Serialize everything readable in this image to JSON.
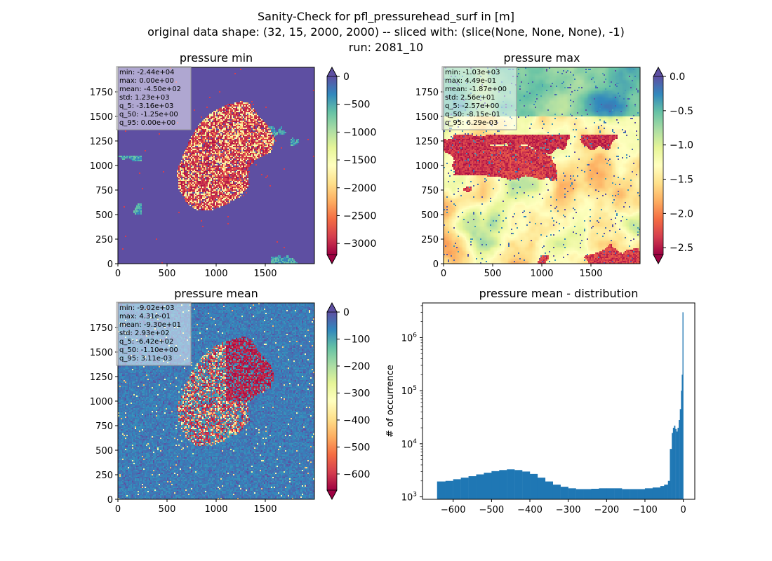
{
  "figure": {
    "title_line1": "Sanity-Check for pfl_pressurehead_surf in [m]",
    "title_line2": "original data shape: (32, 15, 2000, 2000) -- sliced with: (slice(None, None, None), -1)",
    "title_line3": "run: 2081_10"
  },
  "colors": {
    "spectral_stops": [
      "#9e0142",
      "#d53e4f",
      "#f46d43",
      "#fdae61",
      "#fee08b",
      "#ffffbf",
      "#e6f598",
      "#abdda4",
      "#66c2a5",
      "#3288bd",
      "#5e4fa2"
    ],
    "ylorrd_stops": [
      "#800026",
      "#bd0026",
      "#e31a1c",
      "#fc4e2a",
      "#fd8d3c",
      "#feb24c",
      "#fed976",
      "#ffeda0",
      "#ffffcc"
    ],
    "histogram_bar": "#1f77b4"
  },
  "chart_data": [
    {
      "type": "heatmap",
      "title": "pressure min",
      "x_ticks": [
        "0",
        "500",
        "1000",
        "1500"
      ],
      "y_ticks": [
        "0",
        "250",
        "500",
        "750",
        "1000",
        "1250",
        "1500",
        "1750"
      ],
      "xlim": [
        0,
        2000
      ],
      "ylim": [
        0,
        2000
      ],
      "colormap": "Spectral",
      "colorbar": {
        "range": [
          -3200,
          0
        ],
        "extend": "both",
        "ticks": [
          "0",
          "−500",
          "−1000",
          "−1500",
          "−2000",
          "−2500",
          "−3000"
        ],
        "tick_values": [
          0,
          -500,
          -1000,
          -1500,
          -2000,
          -2500,
          -3000
        ]
      },
      "stats": [
        "min: -2.44e+04",
        "max: 0.00e+00",
        "mean: -4.50e+02",
        "std: 1.23e+03",
        "q_5: -3.16e+03",
        "q_50: -1.25e+00",
        "q_95: 0.00e+00"
      ]
    },
    {
      "type": "heatmap",
      "title": "pressure max",
      "x_ticks": [
        "0",
        "500",
        "1000",
        "1500"
      ],
      "y_ticks": [
        "0",
        "250",
        "500",
        "750",
        "1000",
        "1250",
        "1500",
        "1750"
      ],
      "xlim": [
        0,
        2000
      ],
      "ylim": [
        0,
        2000
      ],
      "colormap": "Spectral",
      "colorbar": {
        "range": [
          -2.6,
          0
        ],
        "extend": "both",
        "ticks": [
          "0.0",
          "−0.5",
          "−1.0",
          "−1.5",
          "−2.0",
          "−2.5"
        ],
        "tick_values": [
          0,
          -0.5,
          -1,
          -1.5,
          -2,
          -2.5
        ]
      },
      "stats": [
        "min: -1.03e+03",
        "max: 4.49e-01",
        "mean: -1.87e+00",
        "std: 2.56e+01",
        "q_5: -2.57e+00",
        "q_50: -8.15e-01",
        "q_95: 6.29e-03"
      ]
    },
    {
      "type": "heatmap",
      "title": "pressure mean",
      "x_ticks": [
        "0",
        "500",
        "1000",
        "1500"
      ],
      "y_ticks": [
        "0",
        "250",
        "500",
        "750",
        "1000",
        "1250",
        "1500",
        "1750"
      ],
      "xlim": [
        0,
        2000
      ],
      "ylim": [
        0,
        2000
      ],
      "colormap": "Spectral",
      "colorbar": {
        "range": [
          -660,
          0
        ],
        "extend": "both",
        "ticks": [
          "0",
          "−100",
          "−200",
          "−300",
          "−400",
          "−500",
          "−600"
        ],
        "tick_values": [
          0,
          -100,
          -200,
          -300,
          -400,
          -500,
          -600
        ]
      },
      "stats": [
        "min: -9.02e+03",
        "max: 4.31e-01",
        "mean: -9.30e+01",
        "std: 2.93e+02",
        "q_5: -6.42e+02",
        "q_50: -1.10e+00",
        "q_95: 3.11e-03"
      ]
    },
    {
      "type": "bar",
      "title": "pressure mean - distribution",
      "ylabel": "# of occurrence",
      "yscale": "log",
      "xlim": [
        -680,
        30
      ],
      "ylim": [
        900,
        4500000
      ],
      "x_ticks": [
        "−600",
        "−500",
        "−400",
        "−300",
        "−200",
        "−100",
        "0"
      ],
      "x_tick_values": [
        -600,
        -500,
        -400,
        -300,
        -200,
        -100,
        0
      ],
      "y_ticks": [
        "10^3",
        "10^4",
        "10^5",
        "10^6"
      ],
      "y_tick_values": [
        1000,
        10000,
        100000,
        1000000
      ],
      "x": [
        -642,
        -620,
        -600,
        -580,
        -560,
        -540,
        -520,
        -500,
        -480,
        -460,
        -440,
        -420,
        -400,
        -380,
        -360,
        -340,
        -320,
        -300,
        -280,
        -260,
        -240,
        -220,
        -200,
        -180,
        -160,
        -140,
        -120,
        -100,
        -80,
        -60,
        -50,
        -40,
        -35,
        -30,
        -27,
        -24,
        -21,
        -18,
        -15,
        -12,
        -9,
        -6,
        -4,
        -2,
        0
      ],
      "values": [
        1950,
        2000,
        2150,
        2300,
        2450,
        2650,
        2850,
        3050,
        3200,
        3300,
        3200,
        3000,
        2700,
        2300,
        1950,
        1700,
        1550,
        1450,
        1400,
        1400,
        1420,
        1450,
        1450,
        1450,
        1400,
        1400,
        1400,
        1450,
        1500,
        1600,
        1700,
        2000,
        8000,
        16000,
        20000,
        22000,
        19000,
        17000,
        20000,
        28000,
        45000,
        100000,
        200000,
        3000000,
        3000000
      ]
    }
  ]
}
